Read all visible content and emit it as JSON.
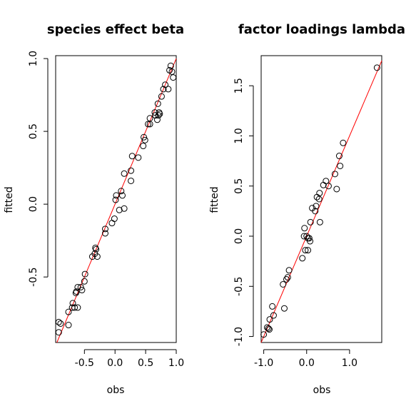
{
  "chart_data": [
    {
      "type": "scatter",
      "title": "species effect beta",
      "xlabel": "obs",
      "ylabel": "fitted",
      "xlim": [
        -0.97,
        1.0
      ],
      "ylim": [
        -0.95,
        1.02
      ],
      "xticks": [
        "-0.5",
        "0.0",
        "0.5",
        "1.0"
      ],
      "yticks": [
        "-0.5",
        "0.0",
        "0.5",
        "1.0"
      ],
      "reference_line": {
        "intercept": 0,
        "slope": 1,
        "color": "#ff0000"
      },
      "points": [
        [
          -0.92,
          -0.81
        ],
        [
          -0.92,
          -0.88
        ],
        [
          -0.89,
          -0.82
        ],
        [
          -0.76,
          -0.74
        ],
        [
          -0.76,
          -0.83
        ],
        [
          -0.69,
          -0.68
        ],
        [
          -0.7,
          -0.71
        ],
        [
          -0.66,
          -0.71
        ],
        [
          -0.61,
          -0.71
        ],
        [
          -0.64,
          -0.61
        ],
        [
          -0.63,
          -0.6
        ],
        [
          -0.61,
          -0.57
        ],
        [
          -0.56,
          -0.57
        ],
        [
          -0.54,
          -0.59
        ],
        [
          -0.5,
          -0.53
        ],
        [
          -0.49,
          -0.48
        ],
        [
          -0.37,
          -0.36
        ],
        [
          -0.33,
          -0.34
        ],
        [
          -0.32,
          -0.3
        ],
        [
          -0.31,
          -0.31
        ],
        [
          -0.29,
          -0.36
        ],
        [
          -0.16,
          -0.17
        ],
        [
          -0.16,
          -0.2
        ],
        [
          -0.05,
          -0.13
        ],
        [
          -0.01,
          -0.1
        ],
        [
          0.01,
          0.03
        ],
        [
          0.02,
          0.06
        ],
        [
          0.07,
          -0.04
        ],
        [
          0.1,
          0.09
        ],
        [
          0.12,
          0.06
        ],
        [
          0.15,
          -0.03
        ],
        [
          0.15,
          0.21
        ],
        [
          0.26,
          0.16
        ],
        [
          0.26,
          0.23
        ],
        [
          0.28,
          0.33
        ],
        [
          0.38,
          0.32
        ],
        [
          0.46,
          0.4
        ],
        [
          0.47,
          0.46
        ],
        [
          0.49,
          0.44
        ],
        [
          0.54,
          0.55
        ],
        [
          0.57,
          0.55
        ],
        [
          0.57,
          0.59
        ],
        [
          0.65,
          0.63
        ],
        [
          0.66,
          0.61
        ],
        [
          0.69,
          0.58
        ],
        [
          0.7,
          0.69
        ],
        [
          0.71,
          0.61
        ],
        [
          0.72,
          0.63
        ],
        [
          0.73,
          0.62
        ],
        [
          0.76,
          0.74
        ],
        [
          0.79,
          0.79
        ],
        [
          0.82,
          0.82
        ],
        [
          0.87,
          0.79
        ],
        [
          0.89,
          0.92
        ],
        [
          0.91,
          0.95
        ],
        [
          0.93,
          0.91
        ],
        [
          0.95,
          0.87
        ]
      ]
    },
    {
      "type": "scatter",
      "title": "factor loadings lambda",
      "xlabel": "obs",
      "ylabel": "fitted",
      "xlim": [
        -1.06,
        1.75
      ],
      "ylim": [
        -1.06,
        1.8
      ],
      "xticks": [
        "-1.0",
        "0.0",
        "1.0"
      ],
      "yticks": [
        "-1.0",
        "-0.5",
        "0.0",
        "0.5",
        "1.0",
        "1.5"
      ],
      "reference_line": {
        "intercept": 0,
        "slope": 1,
        "color": "#ff0000"
      },
      "points": [
        [
          -1.0,
          -0.98
        ],
        [
          -0.92,
          -0.91
        ],
        [
          -0.89,
          -0.92
        ],
        [
          -0.87,
          -0.93
        ],
        [
          -0.86,
          -0.83
        ],
        [
          -0.8,
          -0.7
        ],
        [
          -0.77,
          -0.79
        ],
        [
          -0.55,
          -0.48
        ],
        [
          -0.52,
          -0.72
        ],
        [
          -0.47,
          -0.43
        ],
        [
          -0.44,
          -0.41
        ],
        [
          -0.41,
          -0.34
        ],
        [
          -0.1,
          -0.22
        ],
        [
          -0.06,
          0.0
        ],
        [
          -0.05,
          0.08
        ],
        [
          -0.03,
          -0.14
        ],
        [
          0.0,
          0.0
        ],
        [
          0.03,
          -0.14
        ],
        [
          0.03,
          -0.02
        ],
        [
          0.06,
          -0.02
        ],
        [
          0.08,
          -0.05
        ],
        [
          0.09,
          0.14
        ],
        [
          0.13,
          0.28
        ],
        [
          0.2,
          0.25
        ],
        [
          0.22,
          0.3
        ],
        [
          0.24,
          0.39
        ],
        [
          0.29,
          0.37
        ],
        [
          0.31,
          0.14
        ],
        [
          0.3,
          0.43
        ],
        [
          0.39,
          0.51
        ],
        [
          0.45,
          0.55
        ],
        [
          0.51,
          0.5
        ],
        [
          0.66,
          0.62
        ],
        [
          0.7,
          0.47
        ],
        [
          0.76,
          0.8
        ],
        [
          0.78,
          0.7
        ],
        [
          0.85,
          0.93
        ],
        [
          1.64,
          1.68
        ]
      ]
    }
  ]
}
